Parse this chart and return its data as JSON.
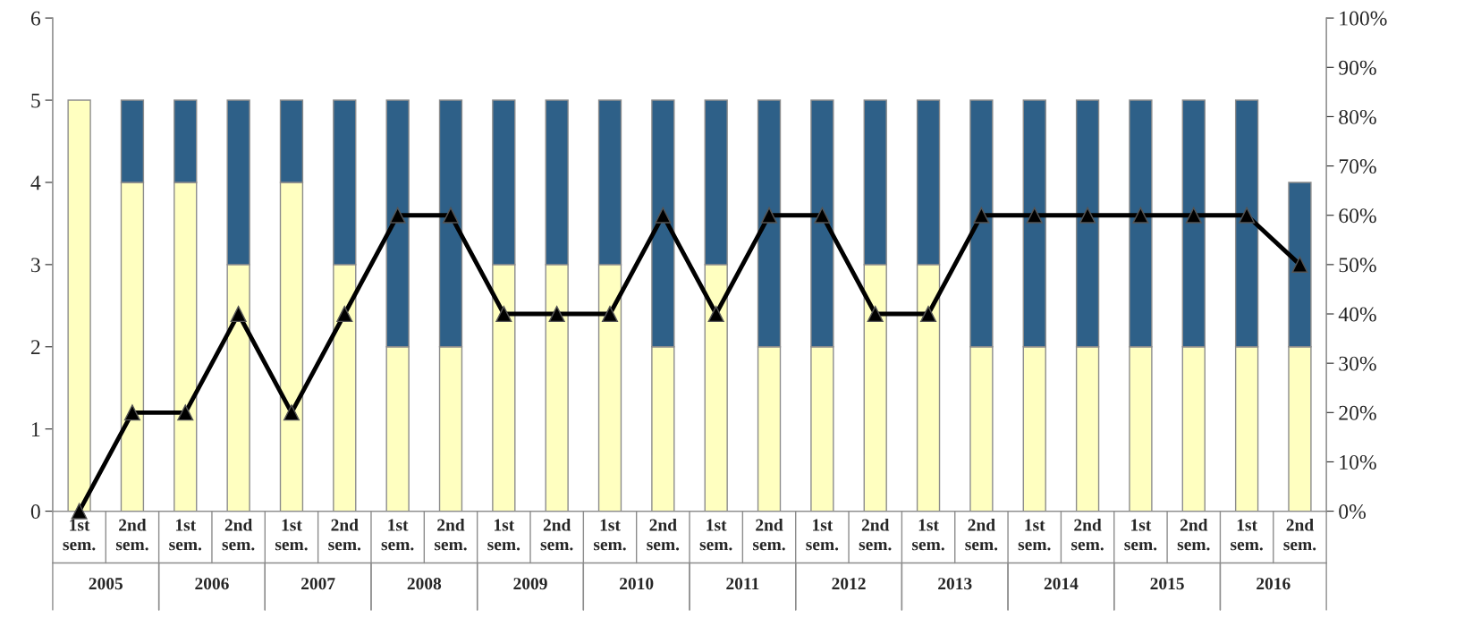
{
  "chart_data": {
    "type": "bar",
    "stacked": true,
    "categories": [
      "1st\nsem.",
      "2nd\nsem.",
      "1st\nsem.",
      "2nd\nsem.",
      "1st\nsem.",
      "2nd\nsem.",
      "1st\nsem.",
      "2nd\nsem.",
      "1st\nsem.",
      "2nd\nsem.",
      "1st\nsem.",
      "2nd\nsem.",
      "1st\nsem.",
      "2nd\nsem.",
      "1st\nsem.",
      "2nd\nsem.",
      "1st\nsem.",
      "2nd\nsem.",
      "1st\nsem.",
      "2nd\nsem.",
      "1st\nsem.",
      "2nd\nsem.",
      "1st\nsem.",
      "2nd\nsem."
    ],
    "series": [
      {
        "color": "#ffffc0",
        "values": [
          5,
          4,
          4,
          3,
          4,
          3,
          2,
          2,
          3,
          3,
          3,
          2,
          3,
          2,
          2,
          3,
          3,
          2,
          2,
          2,
          2,
          2,
          2,
          2
        ]
      },
      {
        "color": "#2e6088",
        "values": [
          null,
          1,
          1,
          2,
          1,
          2,
          3,
          3,
          2,
          2,
          2,
          3,
          2,
          3,
          3,
          2,
          2,
          3,
          3,
          3,
          3,
          3,
          3,
          2
        ]
      },
      {
        "type": "line",
        "axis": "y2",
        "color": "#000000",
        "marker": "triangle",
        "line_style": "solid",
        "values": [
          0,
          20,
          20,
          40,
          20,
          40,
          60,
          60,
          40,
          40,
          40,
          60,
          40,
          60,
          60,
          40,
          40,
          60,
          60,
          60,
          60,
          60,
          60,
          50
        ]
      }
    ],
    "ylim": [
      0,
      6
    ],
    "yticks": [
      0,
      1,
      2,
      3,
      4,
      5,
      6
    ],
    "y2lim": [
      0,
      100
    ],
    "y2ticks": [
      {
        "value": 0,
        "label": "0%"
      },
      {
        "value": 10,
        "label": "10%"
      },
      {
        "value": 20,
        "label": "20%"
      },
      {
        "value": 30,
        "label": "30%"
      },
      {
        "value": 40,
        "label": "40%"
      },
      {
        "value": 50,
        "label": "50%"
      },
      {
        "value": 60,
        "label": "60%"
      },
      {
        "value": 70,
        "label": "70%"
      },
      {
        "value": 80,
        "label": "80%"
      },
      {
        "value": 90,
        "label": "90%"
      },
      {
        "value": 100,
        "label": "100%"
      }
    ],
    "annotations": [
      "2005",
      "2006",
      "2007",
      "2008",
      "2009",
      "2010",
      "2011",
      "2012",
      "2013",
      "2014",
      "2015",
      "2016"
    ],
    "grid": false,
    "legend": false
  }
}
